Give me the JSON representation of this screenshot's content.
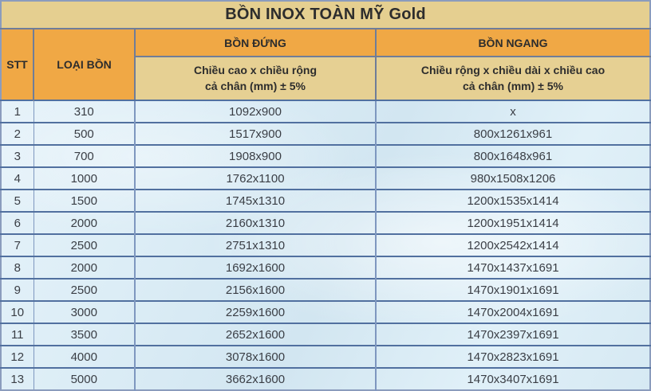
{
  "table": {
    "title": "BỒN INOX TOÀN MỸ Gold",
    "columns": {
      "stt": "STT",
      "loai_bon": "LOẠI BỒN",
      "bon_dung": {
        "label": "BỒN ĐỨNG",
        "sublabel": "Chiều cao x chiều rộng\ncả chân (mm) ± 5%"
      },
      "bon_ngang": {
        "label": "BỒN NGANG",
        "sublabel": "Chiều rộng x chiều dài x chiều cao\ncả chân (mm) ± 5%"
      }
    },
    "rows": [
      {
        "stt": "1",
        "loai_bon": "310",
        "bon_dung": "1092x900",
        "bon_ngang": "x"
      },
      {
        "stt": "2",
        "loai_bon": "500",
        "bon_dung": "1517x900",
        "bon_ngang": "800x1261x961"
      },
      {
        "stt": "3",
        "loai_bon": "700",
        "bon_dung": "1908x900",
        "bon_ngang": "800x1648x961"
      },
      {
        "stt": "4",
        "loai_bon": "1000",
        "bon_dung": "1762x1100",
        "bon_ngang": "980x1508x1206"
      },
      {
        "stt": "5",
        "loai_bon": "1500",
        "bon_dung": "1745x1310",
        "bon_ngang": "1200x1535x1414"
      },
      {
        "stt": "6",
        "loai_bon": "2000",
        "bon_dung": "2160x1310",
        "bon_ngang": "1200x1951x1414"
      },
      {
        "stt": "7",
        "loai_bon": "2500",
        "bon_dung": "2751x1310",
        "bon_ngang": "1200x2542x1414"
      },
      {
        "stt": "8",
        "loai_bon": "2000",
        "bon_dung": "1692x1600",
        "bon_ngang": "1470x1437x1691"
      },
      {
        "stt": "9",
        "loai_bon": "2500",
        "bon_dung": "2156x1600",
        "bon_ngang": "1470x1901x1691"
      },
      {
        "stt": "10",
        "loai_bon": "3000",
        "bon_dung": "2259x1600",
        "bon_ngang": "1470x2004x1691"
      },
      {
        "stt": "11",
        "loai_bon": "3500",
        "bon_dung": "2652x1600",
        "bon_ngang": "1470x2397x1691"
      },
      {
        "stt": "12",
        "loai_bon": "4000",
        "bon_dung": "3078x1600",
        "bon_ngang": "1470x2823x1691"
      },
      {
        "stt": "13",
        "loai_bon": "5000",
        "bon_dung": "3662x1600",
        "bon_ngang": "1470x3407x1691"
      }
    ]
  },
  "colors": {
    "title_bg": "#e5cf90",
    "header_bg": "#f0a845",
    "subheader_bg": "#e6d093",
    "body_bg": "#dcedf6",
    "border_outer": "#8b9cbd",
    "border_row": "#51709f",
    "text": "#2d2d2d"
  },
  "chart_data": {
    "type": "table",
    "title": "BỒN INOX TOÀN MỸ Gold",
    "columns": [
      "STT",
      "LOẠI BỒN",
      "BỒN ĐỨNG — Chiều cao x chiều rộng cả chân (mm) ± 5%",
      "BỒN NGANG — Chiều rộng x chiều dài x chiều cao cả chân (mm) ± 5%"
    ],
    "rows": [
      [
        "1",
        "310",
        "1092x900",
        "x"
      ],
      [
        "2",
        "500",
        "1517x900",
        "800x1261x961"
      ],
      [
        "3",
        "700",
        "1908x900",
        "800x1648x961"
      ],
      [
        "4",
        "1000",
        "1762x1100",
        "980x1508x1206"
      ],
      [
        "5",
        "1500",
        "1745x1310",
        "1200x1535x1414"
      ],
      [
        "6",
        "2000",
        "2160x1310",
        "1200x1951x1414"
      ],
      [
        "7",
        "2500",
        "2751x1310",
        "1200x2542x1414"
      ],
      [
        "8",
        "2000",
        "1692x1600",
        "1470x1437x1691"
      ],
      [
        "9",
        "2500",
        "2156x1600",
        "1470x1901x1691"
      ],
      [
        "10",
        "3000",
        "2259x1600",
        "1470x2004x1691"
      ],
      [
        "11",
        "3500",
        "2652x1600",
        "1470x2397x1691"
      ],
      [
        "12",
        "4000",
        "3078x1600",
        "1470x2823x1691"
      ],
      [
        "13",
        "5000",
        "3662x1600",
        "1470x3407x1691"
      ]
    ]
  }
}
